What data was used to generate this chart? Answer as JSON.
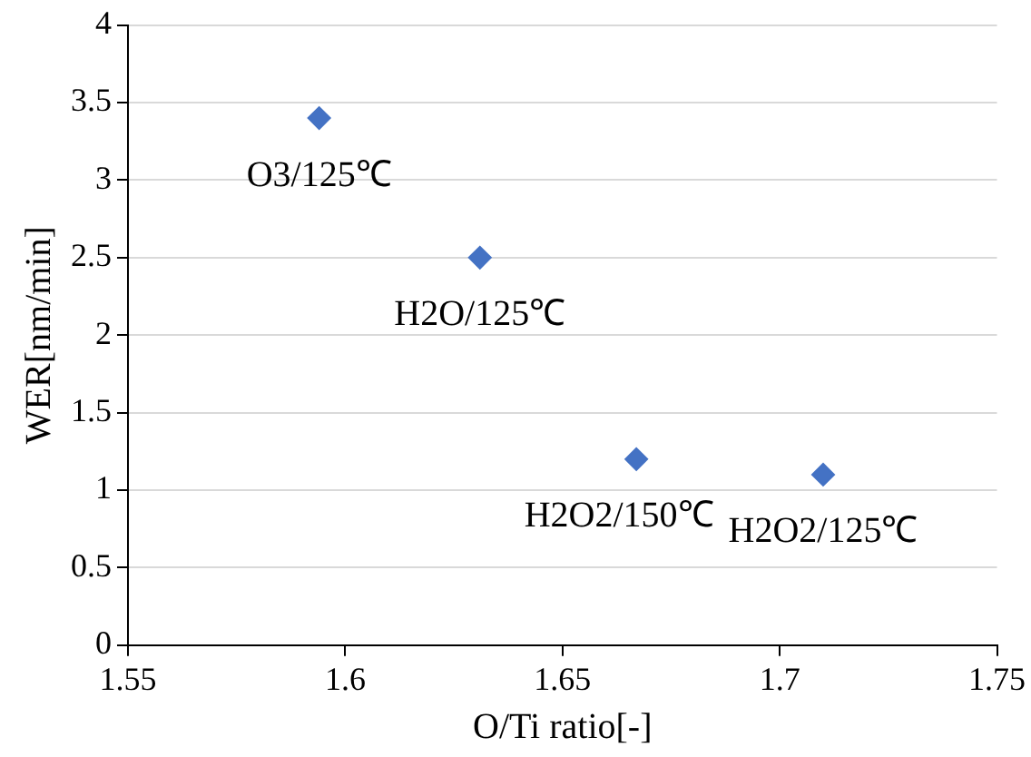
{
  "chart_data": {
    "type": "scatter",
    "xlabel": "O/Ti ratio[-]",
    "ylabel": "WER[nm/min]",
    "x": [
      1.594,
      1.631,
      1.667,
      1.71
    ],
    "values": [
      3.4,
      2.5,
      1.2,
      1.1
    ],
    "color": "#4472c4",
    "marker": "diamond",
    "xlim": [
      1.55,
      1.75
    ],
    "xticks": [
      1.55,
      1.6,
      1.65,
      1.7,
      1.75
    ],
    "ylim": [
      0,
      4
    ],
    "yticks": [
      0,
      0.5,
      1,
      1.5,
      2,
      2.5,
      3,
      3.5,
      4
    ],
    "grid": "y",
    "legend": false,
    "annotations": [
      {
        "text": "O3/125℃",
        "x": 1.594,
        "y": 3.4
      },
      {
        "text": "H2O/125℃",
        "x": 1.631,
        "y": 2.5
      },
      {
        "text": "H2O2/150℃",
        "x": 1.667,
        "y": 1.2
      },
      {
        "text": "H2O2/125℃",
        "x": 1.71,
        "y": 1.1
      }
    ]
  }
}
